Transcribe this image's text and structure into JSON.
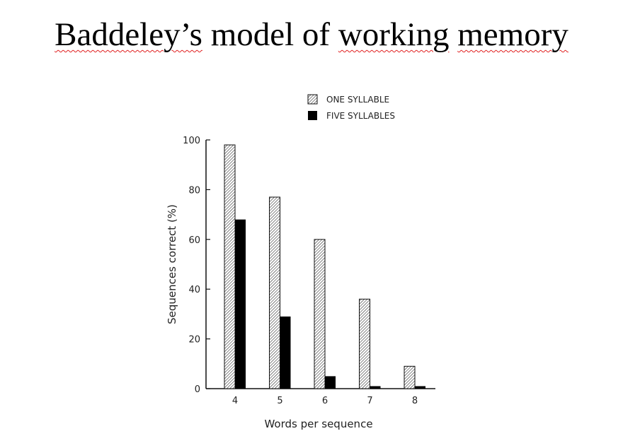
{
  "slide": {
    "title_parts": [
      "Baddeley’s",
      " model of ",
      "working",
      " ",
      "memory"
    ]
  },
  "chart_data": {
    "type": "bar",
    "title": "",
    "xlabel": "Words per sequence",
    "ylabel": "Sequences correct (%)",
    "categories": [
      "4",
      "5",
      "6",
      "7",
      "8"
    ],
    "ylim": [
      0,
      100
    ],
    "yticks": [
      0,
      20,
      40,
      60,
      80,
      100
    ],
    "legend_position": "top-right",
    "series": [
      {
        "name": "ONE SYLLABLE",
        "pattern": "hatched",
        "values": [
          98,
          77,
          60,
          36,
          9
        ]
      },
      {
        "name": "FIVE SYLLABLES",
        "pattern": "solid",
        "color": "#000000",
        "values": [
          68,
          29,
          5,
          1,
          1
        ]
      }
    ]
  }
}
